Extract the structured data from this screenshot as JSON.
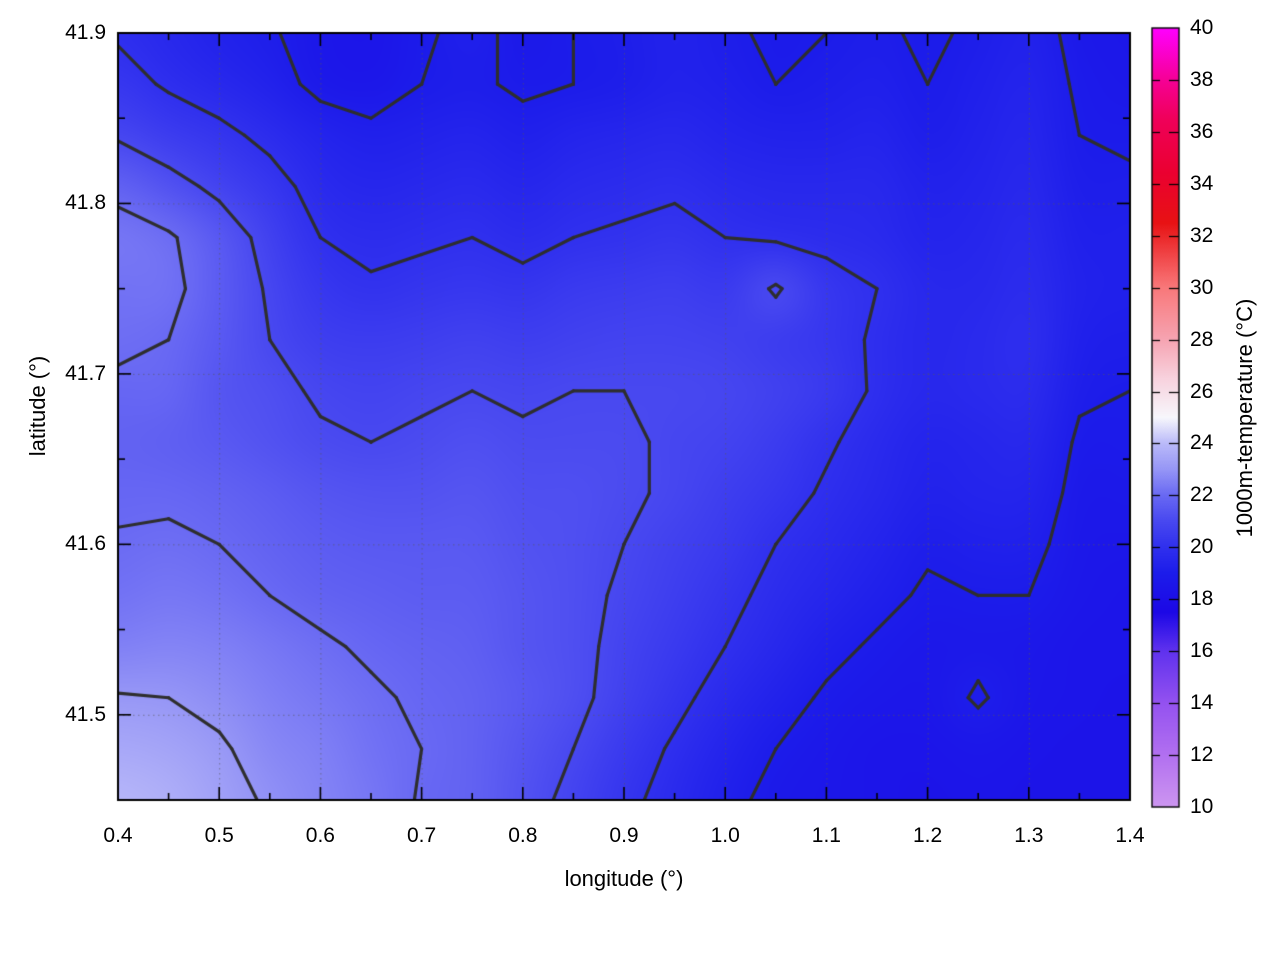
{
  "figure": {
    "background": "#ffffff",
    "axis_color": "#000000",
    "grid_color": "rgba(90,90,90,0.6)"
  },
  "chart_data": {
    "type": "heatmap",
    "title": "",
    "xlabel": "longitude (°)",
    "ylabel": "latitude (°)",
    "x_range": [
      0.4,
      1.4
    ],
    "y_range": [
      41.45,
      41.9
    ],
    "x_tick_labels": [
      "0.4",
      "0.5",
      "0.6",
      "0.7",
      "0.8",
      "0.9",
      "1.0",
      "1.1",
      "1.2",
      "1.3",
      "1.4"
    ],
    "y_tick_labels": [
      "41.5",
      "41.6",
      "41.7",
      "41.8",
      "41.9"
    ],
    "x_minor_step": 0.05,
    "y_minor_step": 0.05,
    "grid_on": true,
    "lon": [
      0.4,
      0.45,
      0.5,
      0.55,
      0.6,
      0.65,
      0.7,
      0.75,
      0.8,
      0.85,
      0.9,
      0.95,
      1.0,
      1.05,
      1.1,
      1.15,
      1.2,
      1.25,
      1.3,
      1.35,
      1.4
    ],
    "lat": [
      41.9,
      41.87,
      41.84,
      41.81,
      41.78,
      41.75,
      41.72,
      41.69,
      41.66,
      41.63,
      41.6,
      41.57,
      41.54,
      41.51,
      41.48,
      41.45
    ],
    "values": [
      [
        19.9,
        19.6,
        19.3,
        19.1,
        18.6,
        18.5,
        18.9,
        19.2,
        18.8,
        19.0,
        19.1,
        19.3,
        19.1,
        18.9,
        19.0,
        19.1,
        18.9,
        19.1,
        19.3,
        18.8,
        18.6
      ],
      [
        20.3,
        19.9,
        19.6,
        19.3,
        18.8,
        18.6,
        19.0,
        19.1,
        18.9,
        19.0,
        19.1,
        19.3,
        19.2,
        19.0,
        19.1,
        19.2,
        19.0,
        19.2,
        19.4,
        18.9,
        18.7
      ],
      [
        20.9,
        20.5,
        20.2,
        19.8,
        19.4,
        19.2,
        19.3,
        19.4,
        19.2,
        19.4,
        19.5,
        19.6,
        19.4,
        19.3,
        19.3,
        19.4,
        19.1,
        19.3,
        19.5,
        19.0,
        18.9
      ],
      [
        21.8,
        21.3,
        20.8,
        20.3,
        19.7,
        19.5,
        19.6,
        19.7,
        19.5,
        19.7,
        19.8,
        19.9,
        19.7,
        19.6,
        19.6,
        19.6,
        19.3,
        19.4,
        19.6,
        19.1,
        19.1
      ],
      [
        22.3,
        22.1,
        21.5,
        20.7,
        20.0,
        19.8,
        19.9,
        20.0,
        19.8,
        20.0,
        20.1,
        20.2,
        20.0,
        19.9,
        19.8,
        19.7,
        19.4,
        19.5,
        19.7,
        19.2,
        19.2
      ],
      [
        22.2,
        22.2,
        21.6,
        20.9,
        20.3,
        20.1,
        20.2,
        20.3,
        20.2,
        20.4,
        20.5,
        20.6,
        20.4,
        21.1,
        20.3,
        20.0,
        19.6,
        19.6,
        19.8,
        19.3,
        19.2
      ],
      [
        22.1,
        22.0,
        21.5,
        21.0,
        20.6,
        20.5,
        20.6,
        20.7,
        20.6,
        20.7,
        20.8,
        20.8,
        20.7,
        20.5,
        20.3,
        19.9,
        19.6,
        19.7,
        19.9,
        19.2,
        19.1
      ],
      [
        21.9,
        21.9,
        21.4,
        21.2,
        20.9,
        20.8,
        20.9,
        21.0,
        20.9,
        21.0,
        21.0,
        21.0,
        20.9,
        20.7,
        20.4,
        19.9,
        19.6,
        19.7,
        19.8,
        19.1,
        19.0
      ],
      [
        21.8,
        21.7,
        21.5,
        21.3,
        21.1,
        21.0,
        21.1,
        21.2,
        21.1,
        21.1,
        21.1,
        20.9,
        20.8,
        20.5,
        20.1,
        19.7,
        19.4,
        19.5,
        19.6,
        18.9,
        18.9
      ],
      [
        21.9,
        21.9,
        21.8,
        21.6,
        21.4,
        21.3,
        21.3,
        21.4,
        21.2,
        21.2,
        21.1,
        20.9,
        20.6,
        20.3,
        19.9,
        19.6,
        19.3,
        19.4,
        19.4,
        18.8,
        18.8
      ],
      [
        22.05,
        22.1,
        22.0,
        21.8,
        21.6,
        21.5,
        21.5,
        21.5,
        21.3,
        21.2,
        21.0,
        20.7,
        20.4,
        20.0,
        19.7,
        19.4,
        19.1,
        19.2,
        19.2,
        18.7,
        18.6
      ],
      [
        22.2,
        22.3,
        22.2,
        22.0,
        21.8,
        21.7,
        21.6,
        21.6,
        21.4,
        21.2,
        20.9,
        20.6,
        20.2,
        19.8,
        19.5,
        19.2,
        18.9,
        19.0,
        19.0,
        18.6,
        18.5
      ],
      [
        22.5,
        22.6,
        22.5,
        22.3,
        22.1,
        21.9,
        21.8,
        21.7,
        21.4,
        21.2,
        20.8,
        20.4,
        20.0,
        19.6,
        19.2,
        18.9,
        18.7,
        18.8,
        18.7,
        18.5,
        18.5
      ],
      [
        23.05,
        23.0,
        22.8,
        22.5,
        22.3,
        22.1,
        21.9,
        21.8,
        21.5,
        21.2,
        20.7,
        20.2,
        19.7,
        19.3,
        18.9,
        18.7,
        18.6,
        19.1,
        18.6,
        18.5,
        18.4
      ],
      [
        23.5,
        23.4,
        23.1,
        22.7,
        22.5,
        22.2,
        22.0,
        21.8,
        21.4,
        21.0,
        20.4,
        19.9,
        19.4,
        19.0,
        18.7,
        18.5,
        18.5,
        18.6,
        18.5,
        18.4,
        18.4
      ],
      [
        23.9,
        23.7,
        23.3,
        22.9,
        22.6,
        22.3,
        21.95,
        21.8,
        21.3,
        20.8,
        20.2,
        19.7,
        19.2,
        18.8,
        18.6,
        18.5,
        18.4,
        18.5,
        18.4,
        18.4,
        18.4
      ]
    ],
    "contour_levels": [
      19,
      20,
      21,
      22,
      23
    ],
    "contour_color": "#2e2e2e",
    "palette_stops": [
      [
        10,
        "#CD96F0"
      ],
      [
        12,
        "#B270F0"
      ],
      [
        14,
        "#9452F0"
      ],
      [
        16,
        "#6032EE"
      ],
      [
        17.5,
        "#1C08E6"
      ],
      [
        19,
        "#1C1CEA"
      ],
      [
        20,
        "#3030EE"
      ],
      [
        21,
        "#4848F0"
      ],
      [
        22,
        "#6969F3"
      ],
      [
        23,
        "#9696F6"
      ],
      [
        24,
        "#BABAF9"
      ],
      [
        25,
        "#F7F7FC"
      ],
      [
        26.5,
        "#F8D2DE"
      ],
      [
        28,
        "#F6A4B2"
      ],
      [
        30,
        "#F9787A"
      ],
      [
        32.5,
        "#E81214"
      ],
      [
        34.5,
        "#EB0032"
      ],
      [
        36.5,
        "#F0005A"
      ],
      [
        38,
        "#F60096"
      ],
      [
        40,
        "#FF00FF"
      ]
    ]
  },
  "colorbar": {
    "label": "1000m-temperature (°C)",
    "min": 10,
    "max": 40,
    "tick_labels": [
      "40",
      "38",
      "36",
      "34",
      "32",
      "30",
      "28",
      "26",
      "24",
      "22",
      "20",
      "18",
      "16",
      "14",
      "12",
      "10"
    ]
  }
}
